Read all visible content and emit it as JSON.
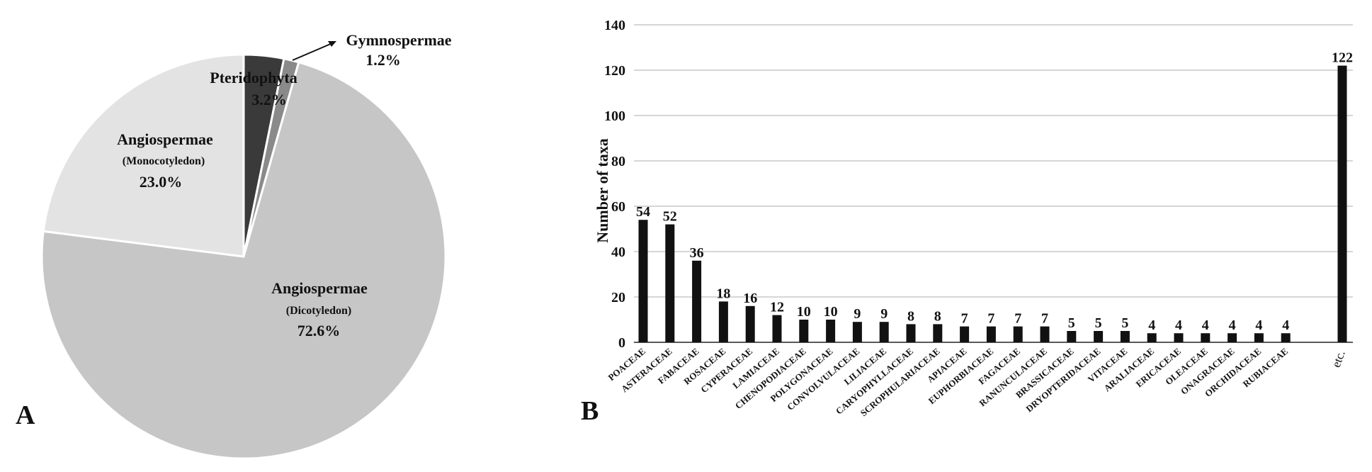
{
  "chart_data": [
    {
      "panel": "A",
      "type": "pie",
      "slices": [
        {
          "name": "Pteridophyta",
          "value": 3.2,
          "label": "3.2%",
          "color": "#3a3a3a"
        },
        {
          "name": "Gymnospermae",
          "value": 1.2,
          "label": "1.2%",
          "color": "#8a8a8a"
        },
        {
          "name": "Angiospermae",
          "sub": "(Dicotyledon)",
          "value": 72.6,
          "label": "72.6%",
          "color": "#c6c6c6"
        },
        {
          "name": "Angiospermae",
          "sub": "(Monocotyledon)",
          "value": 23.0,
          "label": "23.0%",
          "color": "#e3e3e3"
        }
      ]
    },
    {
      "panel": "B",
      "type": "bar",
      "ylabel": "Number of taxa",
      "ylim": [
        0,
        140
      ],
      "yticks": [
        0,
        20,
        40,
        60,
        80,
        100,
        120,
        140
      ],
      "grid": true,
      "bar_color": "#111111",
      "categories": [
        "POACEAE",
        "ASTERACEAE",
        "FABACEAE",
        "ROSACEAE",
        "CYPERACEAE",
        "LAMIACEAE",
        "CHENOPODIACEAE",
        "POLYGONACEAE",
        "CONVOLVULACEAE",
        "LILIACEAE",
        "CARYOPHYLLACEAE",
        "SCROPHULARIACEAE",
        "APIACEAE",
        "EUPHORBIACEAE",
        "FAGACEAE",
        "RANUNCULACEAE",
        "BRASSICACEAE",
        "DRYOPTERIDACEAE",
        "VITACEAE",
        "ARALIACEAE",
        "ERICACEAE",
        "OLEACEAE",
        "ONAGRACEAE",
        "ORCHIDACEAE",
        "RUBIACEAE",
        "etc."
      ],
      "values": [
        54,
        52,
        36,
        18,
        16,
        12,
        10,
        10,
        9,
        9,
        8,
        8,
        7,
        7,
        7,
        7,
        5,
        5,
        5,
        4,
        4,
        4,
        4,
        4,
        4,
        122
      ]
    }
  ]
}
